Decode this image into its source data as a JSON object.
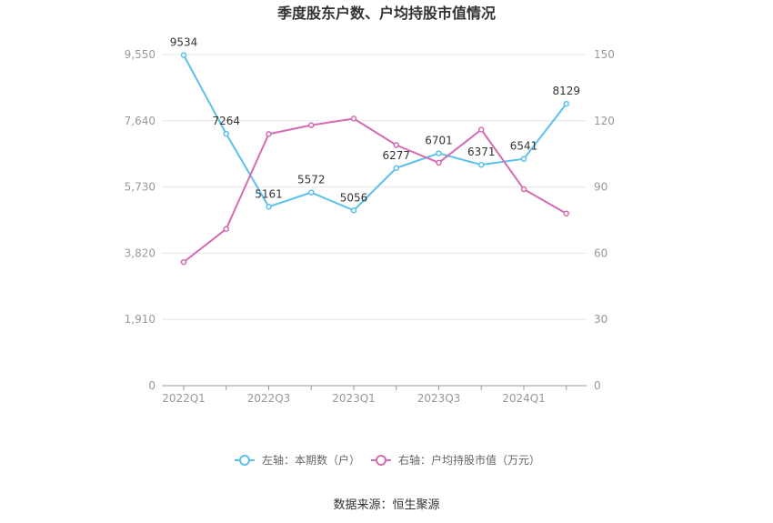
{
  "chart_data": {
    "type": "line",
    "title": "季度股东户数、户均持股市值情况",
    "categories": [
      "2022Q1",
      "2022Q2",
      "2022Q3",
      "2022Q4",
      "2023Q1",
      "2023Q2",
      "2023Q3",
      "2023Q4",
      "2024Q1",
      "2024Q2"
    ],
    "x_tick_labels": [
      "2022Q1",
      "2022Q3",
      "2023Q1",
      "2023Q3",
      "2024Q1"
    ],
    "y_left": {
      "ticks": [
        0,
        1910,
        3820,
        5730,
        7640,
        9550
      ],
      "tick_labels": [
        "0",
        "1,910",
        "3,820",
        "5,730",
        "7,640",
        "9,550"
      ],
      "range": [
        0,
        9550
      ]
    },
    "y_right": {
      "ticks": [
        0,
        30,
        60,
        90,
        120,
        150
      ],
      "tick_labels": [
        "0",
        "30",
        "60",
        "90",
        "120",
        "150"
      ],
      "range": [
        0,
        150
      ]
    },
    "series": [
      {
        "name": "左轴：本期数（户）",
        "axis": "left",
        "color": "#5bc0eb",
        "values": [
          9534,
          7264,
          5161,
          5572,
          5056,
          6277,
          6701,
          6371,
          6541,
          8129
        ],
        "labels": [
          "9534",
          "7264",
          "5161",
          "5572",
          "5056",
          "6277",
          "6701",
          "6371",
          "6541",
          "8129"
        ]
      },
      {
        "name": "右轴：户均持股市值（万元）",
        "axis": "right",
        "color": "#d36bb0",
        "values": [
          56,
          71,
          114,
          118,
          121,
          109,
          101,
          116,
          89,
          78
        ]
      }
    ],
    "legend_position": "bottom",
    "grid": true
  },
  "footer": {
    "source": "数据来源：恒生聚源"
  }
}
